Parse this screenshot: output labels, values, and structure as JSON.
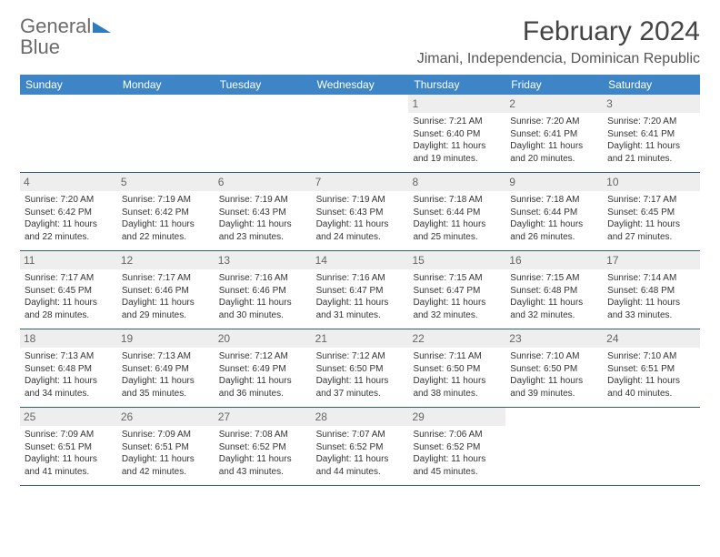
{
  "logo": {
    "textA": "General",
    "textB": "Blue"
  },
  "title": "February 2024",
  "location": "Jimani, Independencia, Dominican Republic",
  "colors": {
    "header_bg": "#3d85c6",
    "row_border": "#2d5e8c",
    "daynum_bg": "#eeeeee",
    "logo_gray": "#6b6b6b",
    "logo_blue": "#2d7bc0"
  },
  "weekdays": [
    "Sunday",
    "Monday",
    "Tuesday",
    "Wednesday",
    "Thursday",
    "Friday",
    "Saturday"
  ],
  "weeks": [
    [
      null,
      null,
      null,
      null,
      {
        "n": "1",
        "sunrise": "Sunrise: 7:21 AM",
        "sunset": "Sunset: 6:40 PM",
        "daylight": "Daylight: 11 hours and 19 minutes."
      },
      {
        "n": "2",
        "sunrise": "Sunrise: 7:20 AM",
        "sunset": "Sunset: 6:41 PM",
        "daylight": "Daylight: 11 hours and 20 minutes."
      },
      {
        "n": "3",
        "sunrise": "Sunrise: 7:20 AM",
        "sunset": "Sunset: 6:41 PM",
        "daylight": "Daylight: 11 hours and 21 minutes."
      }
    ],
    [
      {
        "n": "4",
        "sunrise": "Sunrise: 7:20 AM",
        "sunset": "Sunset: 6:42 PM",
        "daylight": "Daylight: 11 hours and 22 minutes."
      },
      {
        "n": "5",
        "sunrise": "Sunrise: 7:19 AM",
        "sunset": "Sunset: 6:42 PM",
        "daylight": "Daylight: 11 hours and 22 minutes."
      },
      {
        "n": "6",
        "sunrise": "Sunrise: 7:19 AM",
        "sunset": "Sunset: 6:43 PM",
        "daylight": "Daylight: 11 hours and 23 minutes."
      },
      {
        "n": "7",
        "sunrise": "Sunrise: 7:19 AM",
        "sunset": "Sunset: 6:43 PM",
        "daylight": "Daylight: 11 hours and 24 minutes."
      },
      {
        "n": "8",
        "sunrise": "Sunrise: 7:18 AM",
        "sunset": "Sunset: 6:44 PM",
        "daylight": "Daylight: 11 hours and 25 minutes."
      },
      {
        "n": "9",
        "sunrise": "Sunrise: 7:18 AM",
        "sunset": "Sunset: 6:44 PM",
        "daylight": "Daylight: 11 hours and 26 minutes."
      },
      {
        "n": "10",
        "sunrise": "Sunrise: 7:17 AM",
        "sunset": "Sunset: 6:45 PM",
        "daylight": "Daylight: 11 hours and 27 minutes."
      }
    ],
    [
      {
        "n": "11",
        "sunrise": "Sunrise: 7:17 AM",
        "sunset": "Sunset: 6:45 PM",
        "daylight": "Daylight: 11 hours and 28 minutes."
      },
      {
        "n": "12",
        "sunrise": "Sunrise: 7:17 AM",
        "sunset": "Sunset: 6:46 PM",
        "daylight": "Daylight: 11 hours and 29 minutes."
      },
      {
        "n": "13",
        "sunrise": "Sunrise: 7:16 AM",
        "sunset": "Sunset: 6:46 PM",
        "daylight": "Daylight: 11 hours and 30 minutes."
      },
      {
        "n": "14",
        "sunrise": "Sunrise: 7:16 AM",
        "sunset": "Sunset: 6:47 PM",
        "daylight": "Daylight: 11 hours and 31 minutes."
      },
      {
        "n": "15",
        "sunrise": "Sunrise: 7:15 AM",
        "sunset": "Sunset: 6:47 PM",
        "daylight": "Daylight: 11 hours and 32 minutes."
      },
      {
        "n": "16",
        "sunrise": "Sunrise: 7:15 AM",
        "sunset": "Sunset: 6:48 PM",
        "daylight": "Daylight: 11 hours and 32 minutes."
      },
      {
        "n": "17",
        "sunrise": "Sunrise: 7:14 AM",
        "sunset": "Sunset: 6:48 PM",
        "daylight": "Daylight: 11 hours and 33 minutes."
      }
    ],
    [
      {
        "n": "18",
        "sunrise": "Sunrise: 7:13 AM",
        "sunset": "Sunset: 6:48 PM",
        "daylight": "Daylight: 11 hours and 34 minutes."
      },
      {
        "n": "19",
        "sunrise": "Sunrise: 7:13 AM",
        "sunset": "Sunset: 6:49 PM",
        "daylight": "Daylight: 11 hours and 35 minutes."
      },
      {
        "n": "20",
        "sunrise": "Sunrise: 7:12 AM",
        "sunset": "Sunset: 6:49 PM",
        "daylight": "Daylight: 11 hours and 36 minutes."
      },
      {
        "n": "21",
        "sunrise": "Sunrise: 7:12 AM",
        "sunset": "Sunset: 6:50 PM",
        "daylight": "Daylight: 11 hours and 37 minutes."
      },
      {
        "n": "22",
        "sunrise": "Sunrise: 7:11 AM",
        "sunset": "Sunset: 6:50 PM",
        "daylight": "Daylight: 11 hours and 38 minutes."
      },
      {
        "n": "23",
        "sunrise": "Sunrise: 7:10 AM",
        "sunset": "Sunset: 6:50 PM",
        "daylight": "Daylight: 11 hours and 39 minutes."
      },
      {
        "n": "24",
        "sunrise": "Sunrise: 7:10 AM",
        "sunset": "Sunset: 6:51 PM",
        "daylight": "Daylight: 11 hours and 40 minutes."
      }
    ],
    [
      {
        "n": "25",
        "sunrise": "Sunrise: 7:09 AM",
        "sunset": "Sunset: 6:51 PM",
        "daylight": "Daylight: 11 hours and 41 minutes."
      },
      {
        "n": "26",
        "sunrise": "Sunrise: 7:09 AM",
        "sunset": "Sunset: 6:51 PM",
        "daylight": "Daylight: 11 hours and 42 minutes."
      },
      {
        "n": "27",
        "sunrise": "Sunrise: 7:08 AM",
        "sunset": "Sunset: 6:52 PM",
        "daylight": "Daylight: 11 hours and 43 minutes."
      },
      {
        "n": "28",
        "sunrise": "Sunrise: 7:07 AM",
        "sunset": "Sunset: 6:52 PM",
        "daylight": "Daylight: 11 hours and 44 minutes."
      },
      {
        "n": "29",
        "sunrise": "Sunrise: 7:06 AM",
        "sunset": "Sunset: 6:52 PM",
        "daylight": "Daylight: 11 hours and 45 minutes."
      },
      null,
      null
    ]
  ]
}
